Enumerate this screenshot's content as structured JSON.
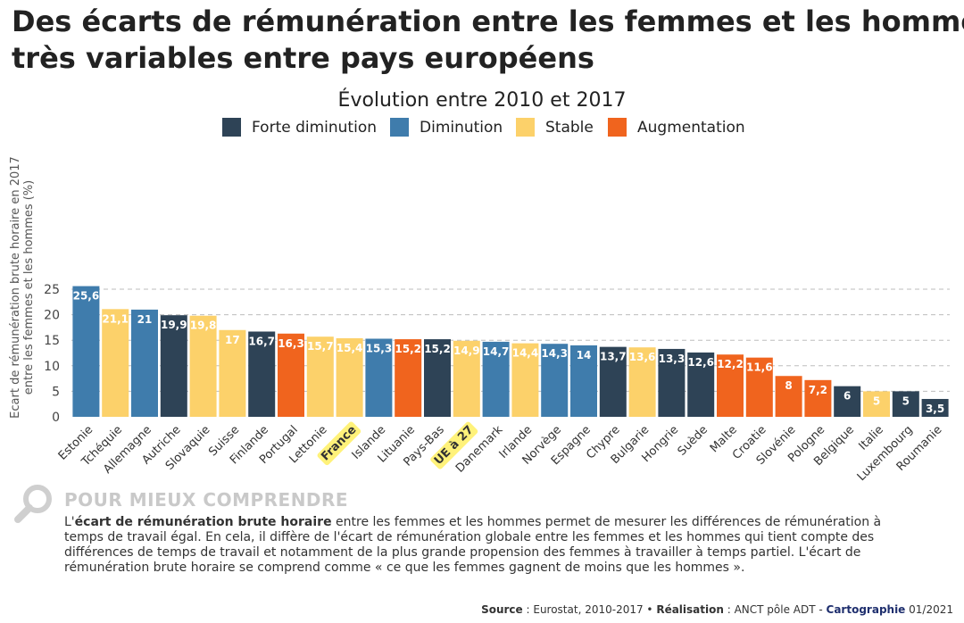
{
  "header": {
    "title_line1": "Des écarts de rémunération entre les femmes et les hommes",
    "title_line2": "très variables entre pays européens"
  },
  "explanation": {
    "heading": "POUR MIEUX COMPRENDRE",
    "text_before": "L'",
    "bold_term": "écart de rémunération brute horaire",
    "text_after": " entre les femmes et les hommes permet de mesurer les différences de rémunération à temps de travail égal. En cela, il diffère de l'écart de rémunération globale entre les femmes et les hommes qui tient compte des différences de temps de travail et notamment de la plus grande propension des femmes à travailler à temps partiel. L'écart de rémunération brute horaire se comprend comme « ce que les femmes gagnent de moins que les hommes »."
  },
  "footer": {
    "source_label": "Source",
    "source_text": " : Eurostat, 2010-2017 • ",
    "realisation_label": "Réalisation",
    "realisation_text": " : ANCT pôle ADT - ",
    "cartographie_label": "Cartographie",
    "date_text": " 01/2021"
  },
  "chart_data": {
    "type": "bar",
    "title": "Évolution entre 2010 et 2017",
    "ylabel_lines": [
      "Ecart de rémunération brute horaire en 2017",
      "entre les femmes et les hommes (%)"
    ],
    "ylim": [
      0,
      27
    ],
    "yticks": [
      0,
      5,
      10,
      15,
      20,
      25
    ],
    "grid": true,
    "legend_position": "top",
    "legend": [
      {
        "key": "forte",
        "label": "Forte diminution",
        "color": "#2e4356"
      },
      {
        "key": "dim",
        "label": "Diminution",
        "color": "#3f7cac"
      },
      {
        "key": "stable",
        "label": "Stable",
        "color": "#fcd16a"
      },
      {
        "key": "aug",
        "label": "Augmentation",
        "color": "#f0641e"
      }
    ],
    "categories": [
      "Estonie",
      "Tchéquie",
      "Allemagne",
      "Autriche",
      "Slovaquie",
      "Suisse",
      "Finlande",
      "Portugal",
      "Lettonie",
      "France",
      "Islande",
      "Lituanie",
      "Pays-Bas",
      "UE à 27",
      "Danemark",
      "Irlande",
      "Norvège",
      "Espagne",
      "Chypre",
      "Bulgarie",
      "Hongrie",
      "Suède",
      "Malte",
      "Croatie",
      "Slovénie",
      "Pologne",
      "Belgique",
      "Italie",
      "Luxembourg",
      "Roumanie"
    ],
    "values": [
      25.6,
      21.1,
      21,
      19.9,
      19.8,
      17,
      16.7,
      16.3,
      15.7,
      15.4,
      15.3,
      15.2,
      15.2,
      14.9,
      14.7,
      14.4,
      14.3,
      14,
      13.7,
      13.6,
      13.3,
      12.6,
      12.2,
      11.6,
      8,
      7.2,
      6,
      5,
      5,
      3.5
    ],
    "value_labels": [
      "25,6",
      "21,1",
      "21",
      "19,9",
      "19,8",
      "17",
      "16,7",
      "16,3",
      "15,7",
      "15,4",
      "15,3",
      "15,2",
      "15,2",
      "14,9",
      "14,7",
      "14,4",
      "14,3",
      "14",
      "13,7",
      "13,6",
      "13,3",
      "12,6",
      "12,2",
      "11,6",
      "8",
      "7,2",
      "6",
      "5",
      "5",
      "3,5"
    ],
    "trend": [
      "dim",
      "stable",
      "dim",
      "forte",
      "stable",
      "stable",
      "forte",
      "aug",
      "stable",
      "stable",
      "dim",
      "aug",
      "forte",
      "stable",
      "dim",
      "stable",
      "dim",
      "dim",
      "forte",
      "stable",
      "forte",
      "forte",
      "aug",
      "aug",
      "aug",
      "aug",
      "forte",
      "stable",
      "forte",
      "forte"
    ],
    "highlighted": [
      "France",
      "UE à 27"
    ],
    "highlight_color": "#fff27a"
  }
}
